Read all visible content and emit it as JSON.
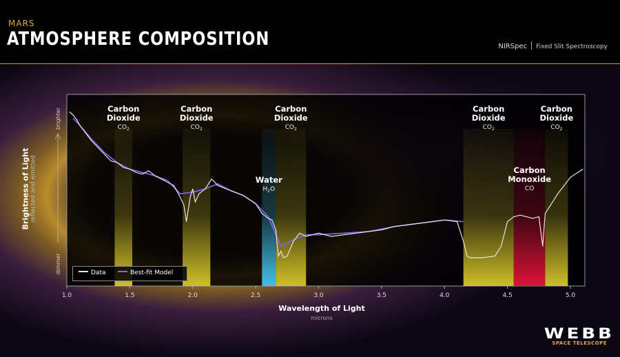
{
  "header": {
    "kicker": "MARS",
    "title": "ATMOSPHERE COMPOSITION",
    "instrument": "NIRSpec",
    "mode": "Fixed Slit Spectroscopy"
  },
  "colors": {
    "accent": "#e0a93b",
    "data_line": "#e6e6e6",
    "model_line": "#8a63ff",
    "co2_band": "#d8c82a",
    "water_band": "#43c7f2",
    "co_band": "#e8143c"
  },
  "logo": {
    "name": "WEBB",
    "subtitle": "SPACE TELESCOPE"
  },
  "chart_data": {
    "type": "line",
    "title": "",
    "xlabel": "Wavelength of Light",
    "xlabel_sub": "microns",
    "ylabel": "Brightness of Light",
    "ylabel_sub": "reflected and emitted",
    "y_low_label": "dimmer",
    "y_high_label": "brighter",
    "xlim": [
      1.0,
      5.1
    ],
    "ylim": [
      0,
      1
    ],
    "x_ticks": [
      "1.0",
      "1.5",
      "2.0",
      "2.5",
      "3.0",
      "3.5",
      "4.0",
      "4.5",
      "5.0"
    ],
    "x_tick_values": [
      1.0,
      1.5,
      2.0,
      2.5,
      3.0,
      3.5,
      4.0,
      4.5,
      5.0
    ],
    "legend": [
      "Data",
      "Best-fit Model"
    ],
    "legend_position": "bottom-left",
    "bands": [
      {
        "molecule": "Carbon Dioxide",
        "formula": "CO",
        "sub": "2",
        "range": [
          1.38,
          1.52
        ],
        "kind": "co2"
      },
      {
        "molecule": "Carbon Dioxide",
        "formula": "CO",
        "sub": "2",
        "range": [
          1.92,
          2.14
        ],
        "kind": "co2"
      },
      {
        "molecule": "Water",
        "formula": "H",
        "sub": "2",
        "formula_end": "O",
        "range": [
          2.55,
          2.66
        ],
        "kind": "water"
      },
      {
        "molecule": "Carbon Dioxide",
        "formula": "CO",
        "sub": "2",
        "range": [
          2.66,
          2.9
        ],
        "kind": "co2"
      },
      {
        "molecule": "Carbon Dioxide",
        "formula": "CO",
        "sub": "2",
        "range": [
          4.15,
          4.55
        ],
        "kind": "co2"
      },
      {
        "molecule": "Carbon Monoxide",
        "formula": "CO",
        "range": [
          4.55,
          4.8
        ],
        "kind": "co"
      },
      {
        "molecule": "Carbon Dioxide",
        "formula": "CO",
        "sub": "2",
        "range": [
          4.8,
          4.98
        ],
        "kind": "co2"
      }
    ],
    "series": [
      {
        "name": "Data",
        "x": [
          1.02,
          1.05,
          1.08,
          1.1,
          1.15,
          1.2,
          1.25,
          1.3,
          1.35,
          1.4,
          1.45,
          1.5,
          1.55,
          1.6,
          1.65,
          1.7,
          1.75,
          1.8,
          1.85,
          1.9,
          1.93,
          1.95,
          1.98,
          2.0,
          2.02,
          2.05,
          2.1,
          2.15,
          2.2,
          2.3,
          2.4,
          2.5,
          2.55,
          2.6,
          2.63,
          2.66,
          2.68,
          2.7,
          2.72,
          2.75,
          2.8,
          2.85,
          2.9,
          3.0,
          3.1,
          3.2,
          3.3,
          3.4,
          3.5,
          3.6,
          3.7,
          3.8,
          3.9,
          4.0,
          4.1,
          4.15,
          4.18,
          4.2,
          4.3,
          4.4,
          4.45,
          4.5,
          4.55,
          4.6,
          4.7,
          4.75,
          4.78,
          4.8,
          4.85,
          4.9,
          5.0,
          5.1
        ],
        "y": [
          0.97,
          0.95,
          0.92,
          0.89,
          0.84,
          0.79,
          0.75,
          0.71,
          0.67,
          0.66,
          0.63,
          0.62,
          0.6,
          0.59,
          0.61,
          0.58,
          0.56,
          0.54,
          0.52,
          0.45,
          0.4,
          0.3,
          0.45,
          0.5,
          0.42,
          0.47,
          0.5,
          0.56,
          0.52,
          0.49,
          0.46,
          0.41,
          0.35,
          0.32,
          0.31,
          0.25,
          0.09,
          0.12,
          0.08,
          0.09,
          0.18,
          0.23,
          0.21,
          0.23,
          0.21,
          0.22,
          0.23,
          0.24,
          0.25,
          0.27,
          0.28,
          0.29,
          0.3,
          0.31,
          0.3,
          0.18,
          0.09,
          0.08,
          0.08,
          0.09,
          0.15,
          0.3,
          0.33,
          0.34,
          0.32,
          0.33,
          0.15,
          0.35,
          0.41,
          0.47,
          0.57,
          0.62
        ]
      },
      {
        "name": "Best-fit Model",
        "x": [
          1.05,
          1.1,
          1.2,
          1.3,
          1.4,
          1.5,
          1.6,
          1.7,
          1.8,
          1.9,
          2.0,
          2.1,
          2.2,
          2.3,
          2.4,
          2.5,
          2.6,
          2.7,
          2.8,
          2.9,
          3.0,
          3.2,
          3.4,
          3.6,
          3.8,
          4.0,
          4.15
        ],
        "y": [
          0.93,
          0.89,
          0.8,
          0.72,
          0.66,
          0.62,
          0.6,
          0.58,
          0.55,
          0.47,
          0.48,
          0.5,
          0.53,
          0.49,
          0.46,
          0.41,
          0.33,
          0.15,
          0.19,
          0.22,
          0.22,
          0.23,
          0.24,
          0.27,
          0.29,
          0.31,
          0.3
        ]
      }
    ]
  }
}
